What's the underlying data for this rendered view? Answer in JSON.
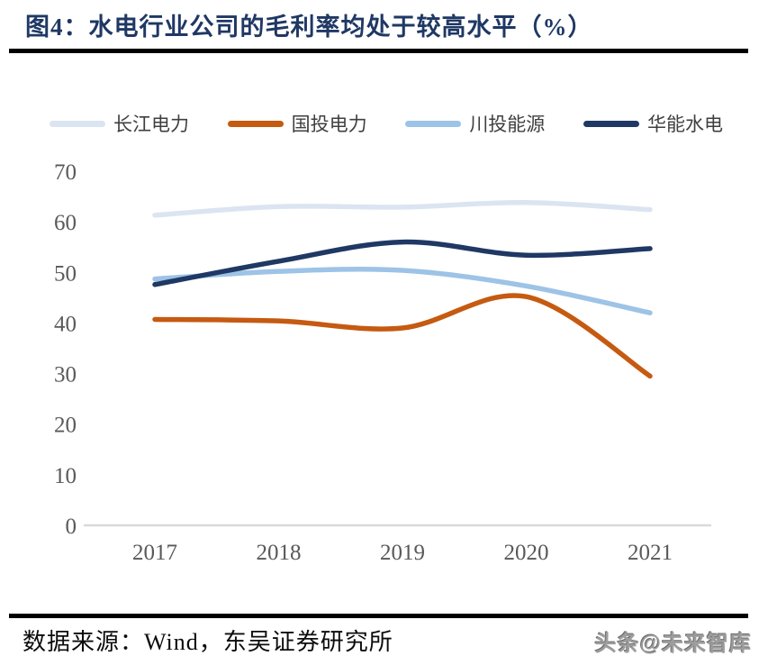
{
  "title": {
    "text": "图4：水电行业公司的毛利率均处于较高水平（%）"
  },
  "chart_data": {
    "type": "line",
    "title": "图4：水电行业公司的毛利率均处于较高水平（%）",
    "x": [
      2017,
      2018,
      2019,
      2020,
      2021
    ],
    "x_labels": [
      "2017",
      "2018",
      "2019",
      "2020",
      "2021"
    ],
    "series": [
      {
        "name": "长江电力",
        "color": "#dbe5f1",
        "values": [
          61.3,
          63.0,
          62.9,
          63.8,
          62.4
        ]
      },
      {
        "name": "国投电力",
        "color": "#c55a11",
        "values": [
          40.7,
          40.4,
          39.0,
          45.2,
          29.5
        ]
      },
      {
        "name": "川投能源",
        "color": "#9dc3e6",
        "values": [
          48.7,
          50.2,
          50.4,
          47.3,
          42.0
        ]
      },
      {
        "name": "华能水电",
        "color": "#1f3864",
        "values": [
          47.6,
          52.2,
          56.0,
          53.4,
          54.7
        ]
      }
    ],
    "ylim": [
      0,
      70
    ],
    "yticks": [
      70,
      60,
      50,
      40,
      30,
      20,
      10,
      0
    ],
    "xlabel": "",
    "ylabel": "",
    "grid": "baseline-only",
    "legend_position": "top",
    "line_smoothing": true
  },
  "footer": {
    "source": "数据来源：Wind，东吴证券研究所",
    "watermark": "头条@未来智库"
  },
  "colors": {
    "title_text": "#1f3864",
    "divider": "#000000",
    "axis_text": "#595959",
    "baseline": "#d9d9d9"
  }
}
